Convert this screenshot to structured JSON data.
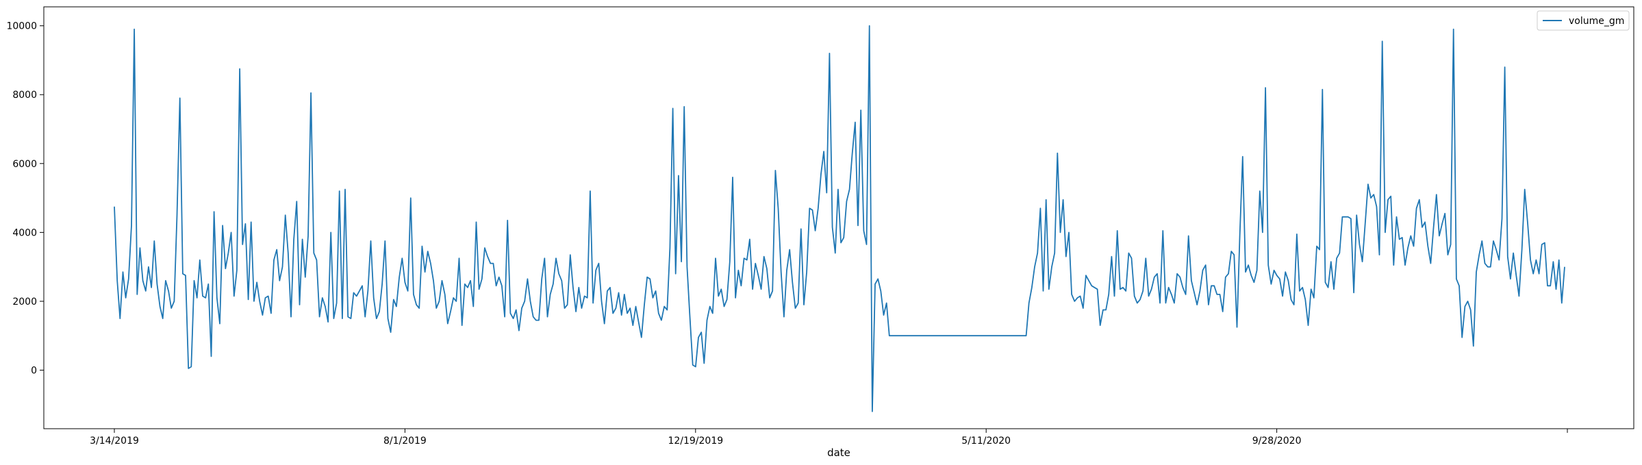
{
  "chart_data": {
    "type": "line",
    "title": "",
    "xlabel": "date",
    "ylabel": "",
    "x_tick_labels": [
      "3/14/2019",
      "8/1/2019",
      "12/19/2019",
      "5/11/2020",
      "9/28/2020",
      ""
    ],
    "y_ticks": [
      0,
      2000,
      4000,
      6000,
      8000,
      10000
    ],
    "ylim": [
      -1700,
      10550
    ],
    "grid": false,
    "legend_position": "top-right",
    "line_color": "#1f77b4",
    "series": [
      {
        "name": "volume_gm",
        "values": [
          4750,
          2600,
          1500,
          2850,
          2100,
          2650,
          4200,
          9900,
          2200,
          3550,
          2600,
          2300,
          3000,
          2400,
          3750,
          2500,
          1850,
          1500,
          2600,
          2300,
          1800,
          2000,
          4500,
          7900,
          2800,
          2750,
          50,
          100,
          2600,
          2100,
          3200,
          2150,
          2100,
          2500,
          400,
          4600,
          2100,
          1350,
          4200,
          2950,
          3400,
          4000,
          2150,
          2900,
          8750,
          3650,
          4250,
          2050,
          4300,
          2000,
          2550,
          2000,
          1600,
          2100,
          2150,
          1650,
          3200,
          3500,
          2600,
          3000,
          4500,
          3400,
          1550,
          3800,
          4900,
          1900,
          3800,
          2700,
          3900,
          8050,
          3400,
          3200,
          1550,
          2100,
          1850,
          1400,
          4000,
          1500,
          1950,
          5200,
          1500,
          5250,
          1550,
          1500,
          2250,
          2150,
          2300,
          2450,
          1550,
          2300,
          3750,
          2100,
          1500,
          1700,
          2500,
          3750,
          1500,
          1100,
          2050,
          1850,
          2700,
          3250,
          2550,
          2300,
          5000,
          2200,
          1900,
          1800,
          3600,
          2850,
          3450,
          3100,
          2600,
          1800,
          2000,
          2600,
          2200,
          1350,
          1700,
          2100,
          2000,
          3250,
          1300,
          2500,
          2400,
          2600,
          1850,
          4300,
          2350,
          2650,
          3550,
          3300,
          3100,
          3100,
          2450,
          2700,
          2450,
          1550,
          4350,
          1650,
          1500,
          1750,
          1150,
          1800,
          2000,
          2650,
          2000,
          1550,
          1450,
          1450,
          2650,
          3250,
          1550,
          2200,
          2500,
          3250,
          2800,
          2600,
          1800,
          1900,
          3350,
          2400,
          1700,
          2400,
          1800,
          2150,
          2100,
          5200,
          1950,
          2900,
          3100,
          2000,
          1350,
          2300,
          2400,
          1650,
          1800,
          2250,
          1600,
          2200,
          1650,
          1800,
          1300,
          1850,
          1400,
          950,
          1900,
          2700,
          2650,
          2100,
          2300,
          1650,
          1450,
          1850,
          1750,
          3550,
          7600,
          2800,
          5650,
          3150,
          7650,
          3000,
          1550,
          150,
          100,
          950,
          1100,
          200,
          1450,
          1850,
          1650,
          3250,
          2150,
          2350,
          1850,
          2050,
          3150,
          5600,
          2100,
          2900,
          2450,
          3250,
          3200,
          3800,
          2350,
          3100,
          2750,
          2350,
          3300,
          2950,
          2100,
          2300,
          5800,
          4700,
          2850,
          1550,
          2900,
          3500,
          2550,
          1800,
          1950,
          4100,
          1900,
          2850,
          4700,
          4650,
          4050,
          4700,
          5700,
          6350,
          5150,
          9200,
          4150,
          3400,
          5250,
          3700,
          3850,
          4900,
          5250,
          6300,
          7200,
          4200,
          7550,
          4050,
          3650,
          10000,
          -1200,
          2500,
          2650,
          2300,
          1600,
          1950,
          1000,
          1000,
          1000,
          1000,
          1000,
          1000,
          1000,
          1000,
          1000,
          1000,
          1000,
          1000,
          1000,
          1000,
          1000,
          1000,
          1000,
          1000,
          1000,
          1000,
          1000,
          1000,
          1000,
          1000,
          1000,
          1000,
          1000,
          1000,
          1000,
          1000,
          1000,
          1000,
          1000,
          1000,
          1000,
          1000,
          1000,
          1000,
          1000,
          1000,
          1000,
          1000,
          1000,
          1000,
          1000,
          1000,
          1000,
          1000,
          1000,
          1950,
          2400,
          3000,
          3400,
          4700,
          2300,
          4950,
          2350,
          3000,
          3400,
          6300,
          4000,
          4950,
          3300,
          4000,
          2200,
          2000,
          2100,
          2150,
          1800,
          2750,
          2600,
          2450,
          2400,
          2350,
          1300,
          1750,
          1750,
          2200,
          3300,
          2150,
          4050,
          2350,
          2400,
          2300,
          3400,
          3250,
          2150,
          1950,
          2050,
          2300,
          3250,
          2150,
          2350,
          2700,
          2800,
          1950,
          4050,
          1950,
          2400,
          2200,
          1950,
          2800,
          2700,
          2400,
          2200,
          3900,
          2600,
          2250,
          1900,
          2300,
          2900,
          3050,
          1900,
          2450,
          2450,
          2200,
          2200,
          1700,
          2700,
          2800,
          3450,
          3350,
          1250,
          3900,
          6200,
          2850,
          3050,
          2750,
          2550,
          2900,
          5200,
          4000,
          8200,
          3050,
          2500,
          2900,
          2750,
          2650,
          2150,
          2850,
          2600,
          2050,
          1900,
          3950,
          2300,
          2400,
          2050,
          1300,
          2350,
          2100,
          3600,
          3500,
          8150,
          2550,
          2400,
          3150,
          2350,
          3250,
          3400,
          4450,
          4450,
          4450,
          4400,
          2250,
          4500,
          3650,
          3150,
          4250,
          5400,
          5000,
          5100,
          4750,
          3350,
          9550,
          4000,
          4950,
          5050,
          3050,
          4450,
          3800,
          3850,
          3050,
          3550,
          3900,
          3600,
          4700,
          4950,
          4150,
          4300,
          3600,
          3100,
          4150,
          5100,
          3900,
          4250,
          4550,
          3350,
          3650,
          9900,
          2650,
          2450,
          950,
          1850,
          2000,
          1750,
          700,
          2850,
          3350,
          3750,
          3100,
          3000,
          3000,
          3750,
          3500,
          3200,
          4400,
          8800,
          3300,
          2650,
          3400,
          2750,
          2150,
          3500,
          5250,
          4300,
          3200,
          2800,
          3200,
          2800,
          3650,
          3700,
          2450,
          2450,
          3150,
          2350,
          3200,
          1950,
          3000
        ]
      }
    ]
  }
}
